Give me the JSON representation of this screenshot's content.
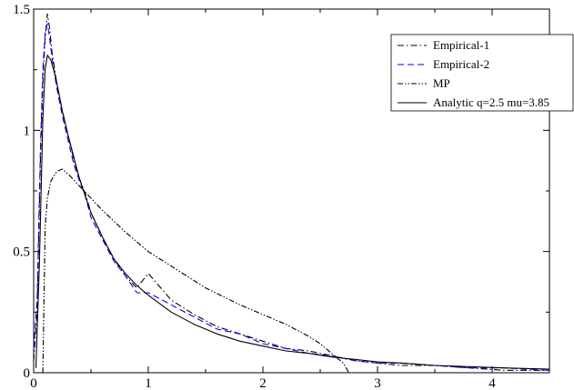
{
  "chart_data": {
    "type": "line",
    "title": "",
    "xlabel": "",
    "ylabel": "",
    "xlim": [
      0,
      4.5
    ],
    "ylim": [
      0,
      1.5
    ],
    "x_ticks": [
      0,
      1,
      2,
      3,
      4
    ],
    "y_ticks": [
      0,
      0.5,
      1,
      1.5
    ],
    "x_tick_labels": [
      "0",
      "1",
      "2",
      "3",
      "4"
    ],
    "y_tick_labels": [
      "0",
      "0.5",
      "1",
      "1.5"
    ],
    "grid": false,
    "legend_position": "top-right",
    "series": [
      {
        "name": "Empirical-1",
        "style": "dash-dot",
        "color": "#000000",
        "x": [
          0.0,
          0.03,
          0.06,
          0.08,
          0.1,
          0.12,
          0.14,
          0.16,
          0.18,
          0.2,
          0.25,
          0.3,
          0.35,
          0.4,
          0.45,
          0.5,
          0.6,
          0.7,
          0.8,
          0.9,
          1.0,
          1.2,
          1.4,
          1.6,
          1.8,
          2.0,
          2.2,
          2.4,
          2.6,
          2.8,
          3.0,
          3.2,
          3.5,
          3.8,
          4.1,
          4.5
        ],
        "y": [
          0.05,
          0.25,
          0.9,
          1.2,
          1.38,
          1.48,
          1.42,
          1.32,
          1.26,
          1.2,
          1.08,
          0.98,
          0.88,
          0.8,
          0.74,
          0.66,
          0.56,
          0.47,
          0.4,
          0.35,
          0.41,
          0.3,
          0.24,
          0.19,
          0.16,
          0.13,
          0.1,
          0.09,
          0.07,
          0.05,
          0.04,
          0.03,
          0.03,
          0.02,
          0.01,
          0.01
        ]
      },
      {
        "name": "Empirical-2",
        "style": "dashed",
        "color": "#0000ff",
        "x": [
          0.0,
          0.03,
          0.06,
          0.08,
          0.1,
          0.12,
          0.14,
          0.16,
          0.18,
          0.2,
          0.25,
          0.3,
          0.35,
          0.4,
          0.45,
          0.5,
          0.6,
          0.7,
          0.8,
          0.9,
          1.0,
          1.2,
          1.4,
          1.6,
          1.8,
          2.0,
          2.2,
          2.4,
          2.6,
          2.8,
          3.0,
          3.2,
          3.5,
          3.8,
          4.1,
          4.5
        ],
        "y": [
          0.1,
          0.3,
          0.95,
          1.25,
          1.4,
          1.44,
          1.38,
          1.3,
          1.24,
          1.18,
          1.06,
          0.96,
          0.86,
          0.79,
          0.73,
          0.64,
          0.55,
          0.46,
          0.4,
          0.33,
          0.33,
          0.28,
          0.23,
          0.18,
          0.16,
          0.12,
          0.1,
          0.08,
          0.07,
          0.05,
          0.04,
          0.04,
          0.03,
          0.02,
          0.02,
          0.01
        ]
      },
      {
        "name": "MP",
        "style": "dash-dot-dot",
        "color": "#000000",
        "x": [
          0.08,
          0.1,
          0.12,
          0.15,
          0.2,
          0.25,
          0.3,
          0.4,
          0.5,
          0.6,
          0.8,
          1.0,
          1.2,
          1.5,
          1.8,
          2.0,
          2.2,
          2.4,
          2.5,
          2.6,
          2.7,
          2.75
        ],
        "y": [
          0.0,
          0.6,
          0.72,
          0.79,
          0.83,
          0.84,
          0.82,
          0.77,
          0.72,
          0.67,
          0.58,
          0.5,
          0.44,
          0.35,
          0.28,
          0.24,
          0.2,
          0.15,
          0.12,
          0.08,
          0.04,
          0.0
        ]
      },
      {
        "name": "Analytic q=2.5 mu=3.85",
        "style": "solid",
        "color": "#000000",
        "x": [
          0.02,
          0.05,
          0.08,
          0.1,
          0.12,
          0.15,
          0.18,
          0.2,
          0.25,
          0.3,
          0.35,
          0.4,
          0.45,
          0.5,
          0.6,
          0.7,
          0.8,
          0.9,
          1.0,
          1.2,
          1.4,
          1.6,
          1.8,
          2.0,
          2.2,
          2.4,
          2.6,
          2.8,
          3.0,
          3.2,
          3.5,
          3.8,
          4.1,
          4.5
        ],
        "y": [
          0.02,
          0.45,
          1.05,
          1.25,
          1.31,
          1.29,
          1.24,
          1.2,
          1.08,
          0.98,
          0.89,
          0.8,
          0.73,
          0.66,
          0.56,
          0.47,
          0.41,
          0.36,
          0.32,
          0.25,
          0.2,
          0.16,
          0.13,
          0.11,
          0.09,
          0.08,
          0.065,
          0.055,
          0.045,
          0.04,
          0.03,
          0.025,
          0.02,
          0.015
        ]
      }
    ]
  }
}
